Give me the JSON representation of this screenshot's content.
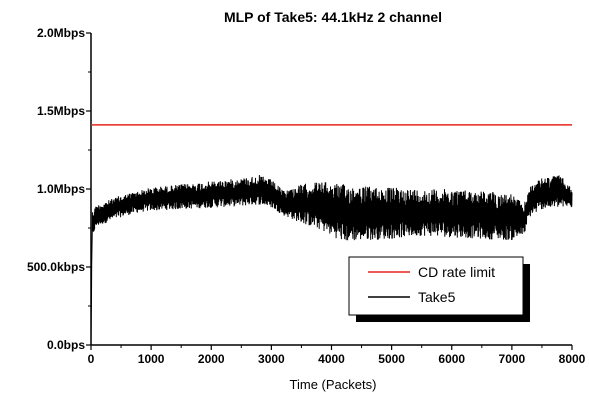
{
  "chart_data": {
    "type": "line",
    "title": "MLP of Take5: 44.1kHz 2 channel",
    "xlabel": "Time (Packets)",
    "ylabel": "",
    "xlim": [
      0,
      8000
    ],
    "ylim": [
      0,
      2000000
    ],
    "x_ticks": [
      0,
      1000,
      2000,
      3000,
      4000,
      5000,
      6000,
      7000,
      8000
    ],
    "x_tick_labels": [
      "0",
      "1000",
      "2000",
      "3000",
      "4000",
      "5000",
      "6000",
      "7000",
      "8000"
    ],
    "y_ticks": [
      0,
      500000,
      1000000,
      1500000,
      2000000
    ],
    "y_tick_labels": [
      "0.0bps",
      "500.0kbps",
      "1.0Mbps",
      "1.5Mbps",
      "2.0Mbps"
    ],
    "grid": false,
    "legend_position": "lower-right",
    "series": [
      {
        "name": "CD rate limit",
        "color": "#e8251f",
        "x": [
          0,
          8000
        ],
        "y": [
          1411200,
          1411200
        ]
      },
      {
        "name": "Take5",
        "color": "#000000",
        "style": "dense-oscillating",
        "x": [
          0,
          20,
          50,
          100,
          300,
          500,
          800,
          1000,
          1500,
          2000,
          2500,
          2800,
          3000,
          3200,
          3500,
          3800,
          4000,
          4200,
          4500,
          5000,
          5500,
          6000,
          6500,
          7000,
          7200,
          7300,
          7500,
          7800,
          8000
        ],
        "y_low": [
          0,
          650000,
          720000,
          760000,
          790000,
          820000,
          850000,
          860000,
          870000,
          880000,
          890000,
          900000,
          880000,
          830000,
          780000,
          740000,
          700000,
          660000,
          670000,
          680000,
          700000,
          690000,
          680000,
          670000,
          700000,
          820000,
          870000,
          880000,
          880000
        ],
        "y_high": [
          0,
          860000,
          880000,
          900000,
          930000,
          960000,
          990000,
          1010000,
          1030000,
          1050000,
          1070000,
          1090000,
          1060000,
          990000,
          1030000,
          1050000,
          1040000,
          1030000,
          1020000,
          1010000,
          1000000,
          1000000,
          990000,
          970000,
          900000,
          1020000,
          1070000,
          1090000,
          1000000
        ]
      }
    ]
  }
}
